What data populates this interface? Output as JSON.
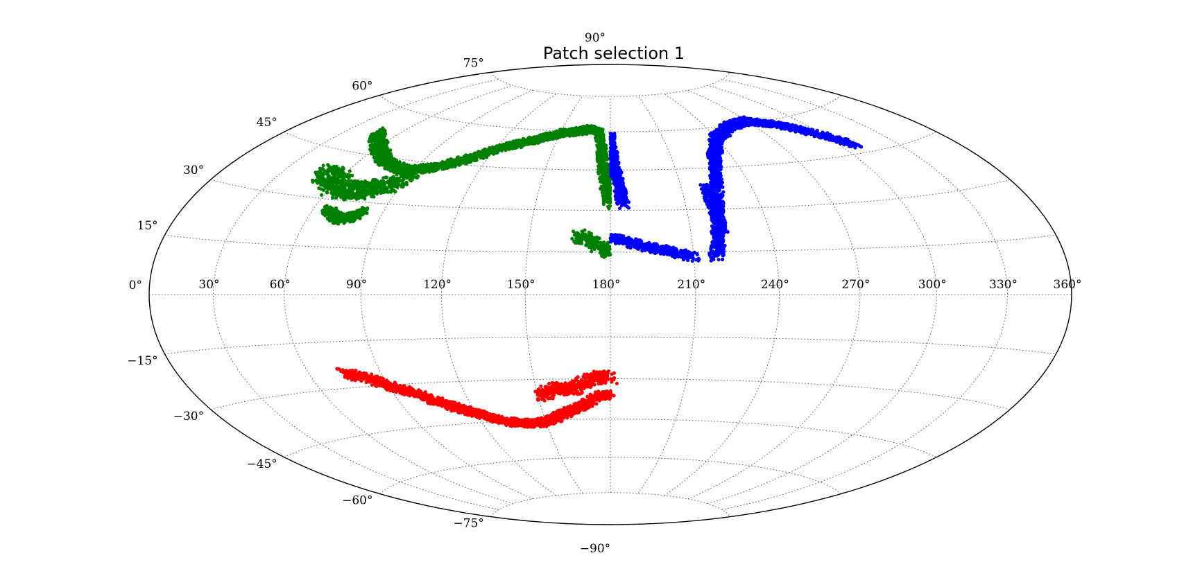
{
  "chart_data": {
    "type": "scatter",
    "projection": "hammer",
    "title": "Patch selection 1",
    "xlabel": "",
    "ylabel": "",
    "xlim": [
      0,
      360
    ],
    "ylim": [
      -90,
      90
    ],
    "grid": true,
    "legend": "none",
    "x_ticks": [
      "30°",
      "60°",
      "90°",
      "120°",
      "150°",
      "180°",
      "210°",
      "240°",
      "270°",
      "300°",
      "330°",
      "360°"
    ],
    "y_ticks": [
      "−90°",
      "−75°",
      "−60°",
      "−45°",
      "−30°",
      "−15°",
      "0°",
      "15°",
      "30°",
      "45°",
      "60°",
      "75°",
      "90°"
    ],
    "series": [
      {
        "color": "#008000",
        "regions": [
          {
            "path": [
              [
                48,
                52
              ],
              [
                60,
                48
              ],
              [
                72,
                44
              ],
              [
                82,
                42
              ],
              [
                90,
                42
              ],
              [
                100,
                44
              ],
              [
                112,
                48
              ],
              [
                125,
                53
              ],
              [
                138,
                56
              ],
              [
                150,
                59
              ],
              [
                160,
                60
              ],
              [
                168,
                61
              ],
              [
                173,
                60
              ],
              [
                175,
                55
              ],
              [
                177,
                44
              ],
              [
                179,
                36
              ],
              [
                180,
                32
              ]
            ],
            "width": 3
          },
          {
            "path": [
              [
                50,
                38
              ],
              [
                58,
                36
              ],
              [
                66,
                33
              ],
              [
                76,
                34
              ],
              [
                84,
                36
              ],
              [
                90,
                39
              ]
            ],
            "width": 6
          },
          {
            "path": [
              [
                66,
                27
              ],
              [
                70,
                25
              ],
              [
                74,
                24
              ],
              [
                78,
                25
              ],
              [
                82,
                27
              ]
            ],
            "width": 3
          },
          {
            "path": [
              [
                168,
                21
              ],
              [
                172,
                19
              ],
              [
                176,
                17
              ],
              [
                180,
                15
              ]
            ],
            "width": 4
          }
        ]
      },
      {
        "color": "#0000ff",
        "regions": [
          {
            "path": [
              [
                180,
                59
              ],
              [
                181,
                53
              ],
              [
                182,
                46
              ],
              [
                184,
                38
              ],
              [
                185,
                32
              ]
            ],
            "width": 3
          },
          {
            "path": [
              [
                180,
                20
              ],
              [
                186,
                19
              ],
              [
                192,
                17
              ],
              [
                198,
                16
              ],
              [
                203,
                15
              ],
              [
                207,
                14
              ],
              [
                210,
                13
              ]
            ],
            "width": 3
          },
          {
            "path": [
              [
                218,
                13
              ],
              [
                220,
                20
              ],
              [
                222,
                30
              ],
              [
                226,
                40
              ],
              [
                232,
                50
              ],
              [
                240,
                56
              ],
              [
                255,
                60
              ],
              [
                270,
                61
              ],
              [
                285,
                58
              ],
              [
                298,
                53
              ],
              [
                308,
                48
              ]
            ],
            "width": 3
          },
          {
            "path": [
              [
                220,
                38
              ],
              [
                221,
                30
              ],
              [
                222,
                22
              ]
            ],
            "width": 3
          }
        ]
      },
      {
        "color": "#ff0000",
        "regions": [
          {
            "path": [
              [
                75,
                -25
              ],
              [
                85,
                -28
              ],
              [
                98,
                -33
              ],
              [
                110,
                -38
              ],
              [
                122,
                -42
              ],
              [
                132,
                -45
              ],
              [
                140,
                -46
              ],
              [
                148,
                -46
              ],
              [
                156,
                -44
              ],
              [
                162,
                -42
              ],
              [
                168,
                -40
              ],
              [
                172,
                -38
              ],
              [
                176,
                -36
              ],
              [
                180,
                -36
              ]
            ],
            "width": 3
          },
          {
            "path": [
              [
                152,
                -36
              ],
              [
                158,
                -33
              ],
              [
                164,
                -34
              ],
              [
                170,
                -31
              ],
              [
                176,
                -29
              ],
              [
                180,
                -30
              ]
            ],
            "width": 4
          }
        ]
      }
    ]
  }
}
